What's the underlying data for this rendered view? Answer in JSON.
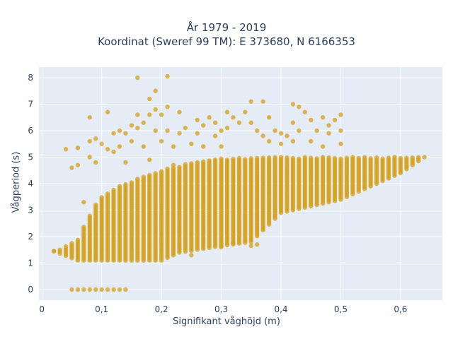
{
  "chart_data": {
    "type": "scatter",
    "title_lines": [
      "År 1979 - 2019",
      "Koordinat (Sweref 99 TM): E 373680, N 6166353"
    ],
    "xlabel": "Signifikant våghöjd (m)",
    "ylabel": "Vågperiod (s)",
    "xlim": [
      -0.005,
      0.67
    ],
    "ylim": [
      -0.4,
      8.4
    ],
    "x_ticks": [
      0,
      0.1,
      0.2,
      0.3,
      0.4,
      0.5,
      0.6
    ],
    "x_tick_labels": [
      "0",
      "0,1",
      "0,2",
      "0,3",
      "0,4",
      "0,5",
      "0,6"
    ],
    "y_ticks": [
      0,
      1,
      2,
      3,
      4,
      5,
      6,
      7,
      8
    ],
    "y_tick_labels": [
      "0",
      "1",
      "2",
      "3",
      "4",
      "5",
      "6",
      "7",
      "8"
    ],
    "grid": true,
    "marker_color": "#d4a017",
    "plot_bg": "#e5ecf6",
    "x_step": 0.01,
    "band_lower": [
      [
        0.02,
        1.45
      ],
      [
        0.06,
        1.1
      ],
      [
        0.2,
        1.1
      ],
      [
        0.23,
        1.4
      ],
      [
        0.3,
        1.65
      ],
      [
        0.35,
        1.8
      ],
      [
        0.4,
        2.9
      ],
      [
        0.5,
        3.4
      ],
      [
        0.6,
        4.4
      ],
      [
        0.64,
        5.0
      ]
    ],
    "band_upper": [
      [
        0.02,
        1.45
      ],
      [
        0.06,
        1.9
      ],
      [
        0.07,
        2.4
      ],
      [
        0.08,
        2.8
      ],
      [
        0.09,
        3.2
      ],
      [
        0.1,
        3.5
      ],
      [
        0.12,
        3.8
      ],
      [
        0.15,
        4.1
      ],
      [
        0.2,
        4.5
      ],
      [
        0.25,
        4.8
      ],
      [
        0.3,
        4.95
      ],
      [
        0.4,
        5.0
      ],
      [
        0.5,
        5.0
      ],
      [
        0.6,
        5.0
      ],
      [
        0.64,
        5.05
      ]
    ],
    "zero_points": [
      [
        0.05,
        0
      ],
      [
        0.06,
        0
      ],
      [
        0.07,
        0
      ],
      [
        0.08,
        0
      ],
      [
        0.09,
        0
      ],
      [
        0.1,
        0
      ],
      [
        0.11,
        0
      ],
      [
        0.12,
        0
      ],
      [
        0.13,
        0
      ],
      [
        0.14,
        0
      ]
    ],
    "outliers": [
      [
        0.02,
        1.45
      ],
      [
        0.04,
        5.3
      ],
      [
        0.05,
        4.6
      ],
      [
        0.06,
        4.7
      ],
      [
        0.06,
        5.35
      ],
      [
        0.07,
        3.3
      ],
      [
        0.08,
        6.5
      ],
      [
        0.08,
        5.6
      ],
      [
        0.08,
        5.0
      ],
      [
        0.09,
        5.7
      ],
      [
        0.09,
        4.8
      ],
      [
        0.1,
        5.5
      ],
      [
        0.11,
        6.7
      ],
      [
        0.11,
        5.3
      ],
      [
        0.12,
        5.9
      ],
      [
        0.12,
        5.2
      ],
      [
        0.13,
        6.0
      ],
      [
        0.13,
        5.4
      ],
      [
        0.14,
        5.9
      ],
      [
        0.14,
        4.8
      ],
      [
        0.15,
        6.2
      ],
      [
        0.15,
        5.6
      ],
      [
        0.16,
        8.0
      ],
      [
        0.16,
        6.6
      ],
      [
        0.16,
        6.1
      ],
      [
        0.17,
        6.3
      ],
      [
        0.17,
        5.4
      ],
      [
        0.18,
        7.2
      ],
      [
        0.18,
        6.6
      ],
      [
        0.18,
        4.9
      ],
      [
        0.19,
        7.5
      ],
      [
        0.19,
        6.8
      ],
      [
        0.19,
        6.0
      ],
      [
        0.2,
        6.6
      ],
      [
        0.2,
        5.6
      ],
      [
        0.21,
        8.05
      ],
      [
        0.21,
        6.9
      ],
      [
        0.21,
        6.0
      ],
      [
        0.22,
        5.4
      ],
      [
        0.22,
        4.7
      ],
      [
        0.23,
        6.7
      ],
      [
        0.23,
        5.9
      ],
      [
        0.24,
        6.1
      ],
      [
        0.25,
        5.5
      ],
      [
        0.26,
        6.4
      ],
      [
        0.26,
        5.9
      ],
      [
        0.27,
        6.2
      ],
      [
        0.27,
        5.4
      ],
      [
        0.28,
        6.5
      ],
      [
        0.29,
        6.3
      ],
      [
        0.29,
        5.8
      ],
      [
        0.3,
        6.0
      ],
      [
        0.3,
        5.4
      ],
      [
        0.31,
        6.7
      ],
      [
        0.31,
        6.1
      ],
      [
        0.32,
        6.5
      ],
      [
        0.33,
        6.3
      ],
      [
        0.34,
        6.7
      ],
      [
        0.35,
        7.1
      ],
      [
        0.35,
        6.3
      ],
      [
        0.36,
        6.0
      ],
      [
        0.37,
        7.1
      ],
      [
        0.37,
        5.8
      ],
      [
        0.38,
        6.5
      ],
      [
        0.38,
        5.6
      ],
      [
        0.39,
        6.0
      ],
      [
        0.4,
        5.9
      ],
      [
        0.4,
        5.5
      ],
      [
        0.41,
        5.8
      ],
      [
        0.42,
        7.0
      ],
      [
        0.42,
        6.3
      ],
      [
        0.42,
        5.6
      ],
      [
        0.43,
        6.9
      ],
      [
        0.43,
        6.0
      ],
      [
        0.44,
        6.7
      ],
      [
        0.45,
        6.4
      ],
      [
        0.45,
        5.6
      ],
      [
        0.46,
        6.0
      ],
      [
        0.47,
        6.5
      ],
      [
        0.47,
        5.4
      ],
      [
        0.48,
        6.2
      ],
      [
        0.48,
        5.9
      ],
      [
        0.49,
        6.4
      ],
      [
        0.5,
        6.6
      ],
      [
        0.5,
        6.0
      ],
      [
        0.5,
        5.5
      ],
      [
        0.25,
        1.3
      ],
      [
        0.3,
        1.6
      ],
      [
        0.32,
        1.75
      ],
      [
        0.35,
        1.65
      ],
      [
        0.36,
        1.7
      ]
    ]
  }
}
